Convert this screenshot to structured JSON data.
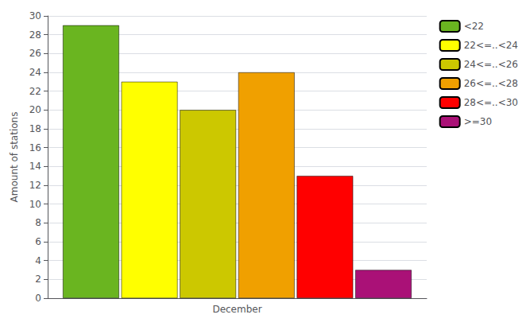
{
  "chart_data": {
    "type": "bar",
    "categories": [
      "December"
    ],
    "series": [
      {
        "name": "<22",
        "color": "#6ab520",
        "values": [
          29
        ]
      },
      {
        "name": "22<=..<24",
        "color": "#ffff00",
        "values": [
          23
        ]
      },
      {
        "name": "24<=..<26",
        "color": "#ccc800",
        "values": [
          20
        ]
      },
      {
        "name": "26<=..<28",
        "color": "#f0a000",
        "values": [
          24
        ]
      },
      {
        "name": "28<=..<30",
        "color": "#ff0000",
        "values": [
          13
        ]
      },
      {
        "name": ">=30",
        "color": "#aa1177",
        "values": [
          3
        ]
      }
    ],
    "ylabel": "Amount of stations",
    "ylim": [
      0,
      30
    ],
    "yticks": [
      0,
      2,
      4,
      6,
      8,
      10,
      12,
      14,
      16,
      18,
      20,
      22,
      24,
      26,
      28,
      30
    ],
    "grid": true,
    "legend": "upper right"
  }
}
